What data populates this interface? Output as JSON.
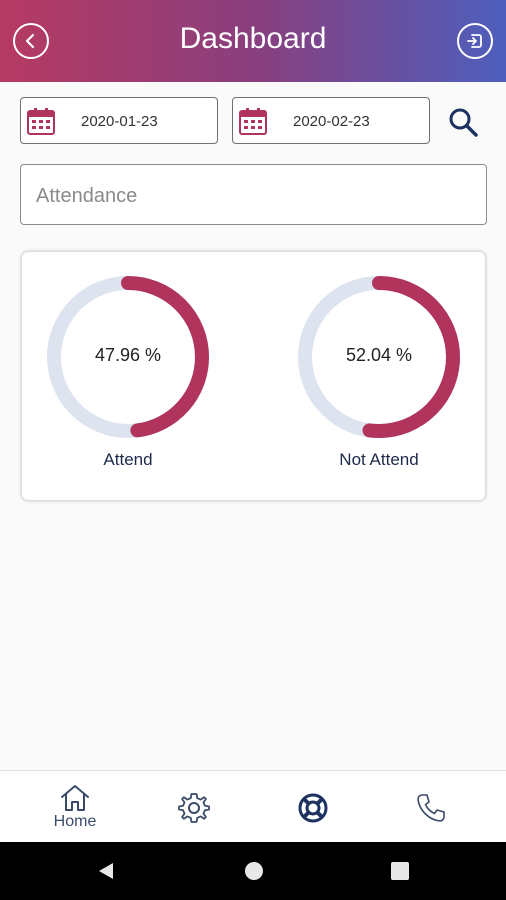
{
  "header": {
    "title": "Dashboard",
    "back_icon": "chevron-left-circle-icon",
    "logout_icon": "logout-icon"
  },
  "filters": {
    "date_from": "2020-01-23",
    "date_to": "2020-02-23",
    "search_icon": "search-icon"
  },
  "report": {
    "selected": "Attendance"
  },
  "stats": [
    {
      "label": "Attend",
      "value_text": "47.96 %",
      "percent": 47.96
    },
    {
      "label": "Not Attend",
      "value_text": "52.04 %",
      "percent": 52.04
    }
  ],
  "colors": {
    "accent": "#b0345b",
    "ring_track": "#dde4f0",
    "header_start": "#b63a62",
    "header_end": "#4d5fbd"
  },
  "bottom_nav": [
    {
      "label": "Home",
      "icon": "home-icon"
    },
    {
      "label": "",
      "icon": "gear-icon"
    },
    {
      "label": "",
      "icon": "lifebuoy-icon"
    },
    {
      "label": "",
      "icon": "phone-icon"
    }
  ]
}
